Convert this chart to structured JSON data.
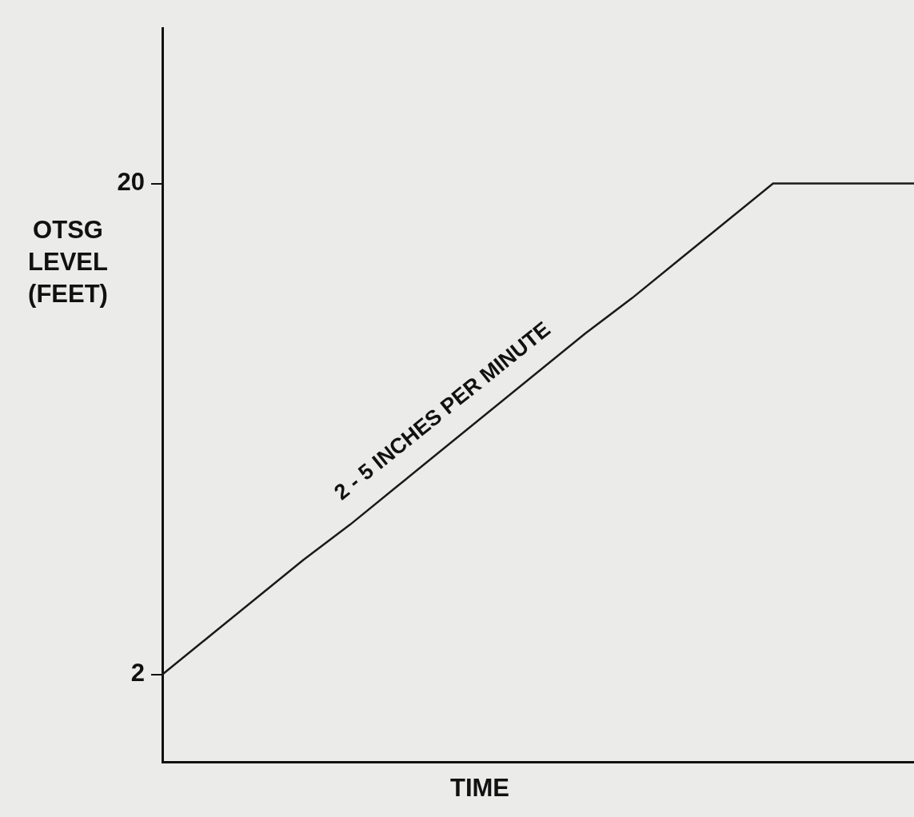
{
  "chart_data": {
    "type": "line",
    "xlabel": "TIME",
    "ylabel": "OTSG LEVEL (FEET)",
    "categories": [
      null,
      null,
      null,
      null,
      null,
      null,
      null,
      null,
      null,
      null,
      null,
      null,
      null,
      null,
      null,
      null,
      null
    ],
    "series": [
      {
        "color": "#1a1a1a",
        "values": [
          2,
          3.4,
          4.8,
          6.2,
          7.5,
          8.9,
          10.3,
          11.7,
          13.1,
          14.5,
          15.8,
          17.2,
          18.6,
          20,
          20,
          20,
          20
        ]
      }
    ],
    "ylim": [
      -1.2,
      25.7
    ],
    "yticks": [
      2,
      20
    ],
    "tick_labels": "y",
    "grid": false,
    "legend": false,
    "marker": "none",
    "line_style": "solid",
    "annotations": [
      "2 - 5 INCHES PER MINUTE"
    ]
  }
}
